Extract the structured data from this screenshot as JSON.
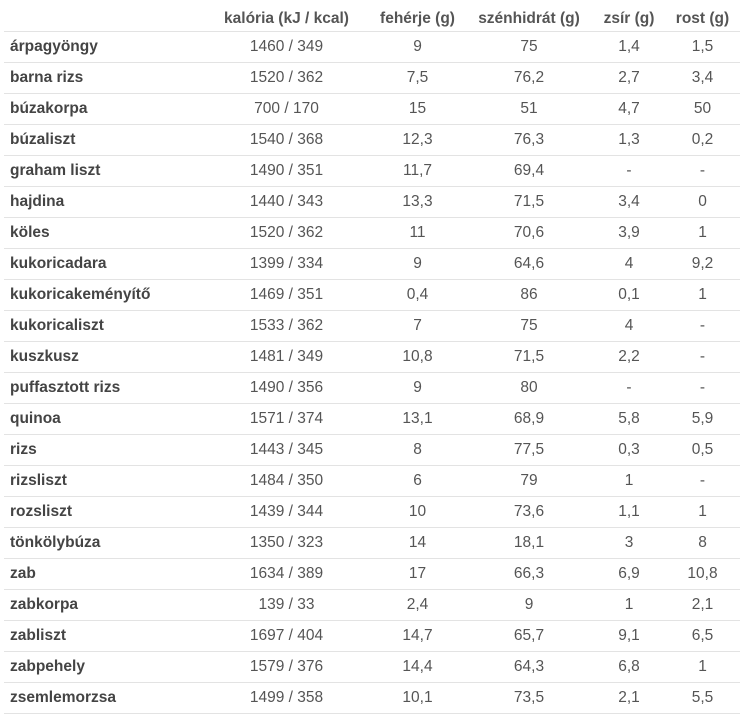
{
  "table": {
    "headers": [
      "",
      "kalória (kJ / kcal)",
      "fehérje (g)",
      "szénhidrát (g)",
      "zsír (g)",
      "rost (g)"
    ],
    "rows": [
      [
        "árpagyöngy",
        "1460 / 349",
        "9",
        "75",
        "1,4",
        "1,5"
      ],
      [
        "barna rizs",
        "1520 / 362",
        "7,5",
        "76,2",
        "2,7",
        "3,4"
      ],
      [
        "búzakorpa",
        "700 / 170",
        "15",
        "51",
        "4,7",
        "50"
      ],
      [
        "búzaliszt",
        "1540 / 368",
        "12,3",
        "76,3",
        "1,3",
        "0,2"
      ],
      [
        "graham liszt",
        "1490 / 351",
        "11,7",
        "69,4",
        "-",
        "-"
      ],
      [
        "hajdina",
        "1440 / 343",
        "13,3",
        "71,5",
        "3,4",
        "0"
      ],
      [
        "köles",
        "1520 / 362",
        "11",
        "70,6",
        "3,9",
        "1"
      ],
      [
        "kukoricadara",
        "1399 / 334",
        "9",
        "64,6",
        "4",
        "9,2"
      ],
      [
        "kukoricakeményítő",
        "1469 / 351",
        "0,4",
        "86",
        "0,1",
        "1"
      ],
      [
        "kukoricaliszt",
        "1533 / 362",
        "7",
        "75",
        "4",
        "-"
      ],
      [
        "kuszkusz",
        "1481 / 349",
        "10,8",
        "71,5",
        "2,2",
        "-"
      ],
      [
        "puffasztott rizs",
        "1490 / 356",
        "9",
        "80",
        "-",
        "-"
      ],
      [
        "quinoa",
        "1571 / 374",
        "13,1",
        "68,9",
        "5,8",
        "5,9"
      ],
      [
        "rizs",
        "1443 / 345",
        "8",
        "77,5",
        "0,3",
        "0,5"
      ],
      [
        "rizsliszt",
        "1484 / 350",
        "6",
        "79",
        "1",
        "-"
      ],
      [
        "rozsliszt",
        "1439 / 344",
        "10",
        "73,6",
        "1,1",
        "1"
      ],
      [
        "tönkölybúza",
        "1350 / 323",
        "14",
        "18,1",
        "3",
        "8"
      ],
      [
        "zab",
        "1634 / 389",
        "17",
        "66,3",
        "6,9",
        "10,8"
      ],
      [
        "zabkorpa",
        "139 / 33",
        "2,4",
        "9",
        "1",
        "2,1"
      ],
      [
        "zabliszt",
        "1697 / 404",
        "14,7",
        "65,7",
        "9,1",
        "6,5"
      ],
      [
        "zabpehely",
        "1579 / 376",
        "14,4",
        "64,3",
        "6,8",
        "1"
      ],
      [
        "zsemlemorzsa",
        "1499 / 358",
        "10,1",
        "73,5",
        "2,1",
        "5,5"
      ]
    ]
  }
}
